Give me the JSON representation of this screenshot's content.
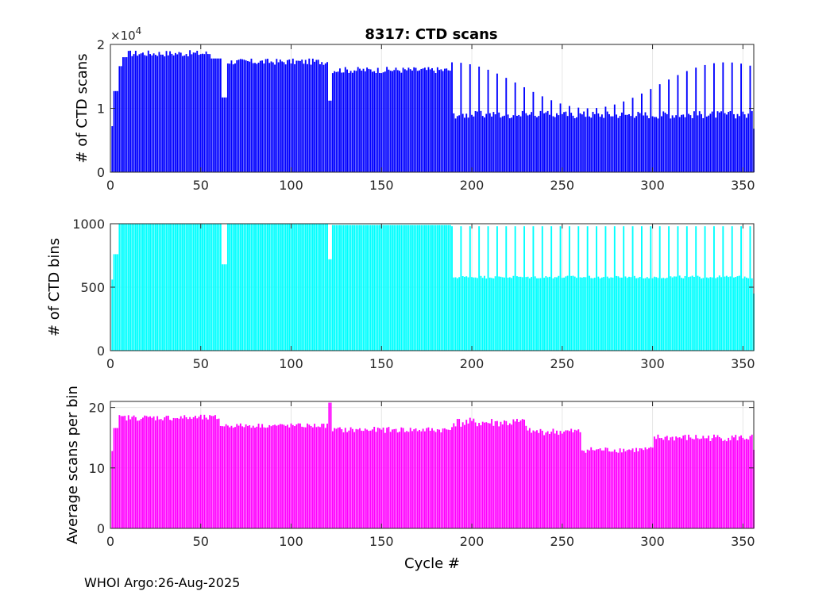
{
  "title": "8317: CTD scans",
  "footer": "WHOI Argo:26-Aug-2025",
  "chart_data": [
    {
      "type": "bar",
      "name": "ctd-scans",
      "title": "8317: CTD scans",
      "ylabel": "# of CTD scans",
      "xlabel": "",
      "xlim": [
        0,
        356
      ],
      "ylim": [
        0,
        2
      ],
      "y_exponent_label": "×10",
      "y_exponent_power": "4",
      "xticks": [
        "0",
        "50",
        "100",
        "150",
        "200",
        "250",
        "300",
        "350"
      ],
      "yticks": [
        "0",
        "1",
        "2"
      ],
      "color": "#0000ff",
      "grid": true,
      "segments": [
        {
          "from": 1,
          "to": 1,
          "value": 0.72
        },
        {
          "from": 2,
          "to": 4,
          "value": 1.27
        },
        {
          "from": 5,
          "to": 6,
          "value": 1.66
        },
        {
          "from": 7,
          "to": 9,
          "value": 1.8
        },
        {
          "from": 10,
          "to": 55,
          "value": 1.86,
          "jitter": 0.05
        },
        {
          "from": 56,
          "to": 61,
          "value": 1.78
        },
        {
          "from": 62,
          "to": 64,
          "value": 1.17
        },
        {
          "from": 65,
          "to": 120,
          "value": 1.73,
          "jitter": 0.05
        },
        {
          "from": 121,
          "to": 122,
          "value": 1.12
        },
        {
          "from": 123,
          "to": 188,
          "value": 1.6,
          "jitter": 0.05
        },
        {
          "from": 189,
          "to": 356,
          "value": 0.9,
          "jitter": 0.06,
          "spike_every": 5,
          "spike_from": 1.0,
          "spike_to": 1.72
        },
        {
          "from": 356,
          "to": 356,
          "value": 0.68
        }
      ]
    },
    {
      "type": "bar",
      "name": "ctd-bins",
      "title": "",
      "ylabel": "# of CTD bins",
      "xlabel": "",
      "xlim": [
        0,
        356
      ],
      "ylim": [
        0,
        1000
      ],
      "xticks": [
        "0",
        "50",
        "100",
        "150",
        "200",
        "250",
        "300",
        "350"
      ],
      "yticks": [
        "0",
        "500",
        "1000"
      ],
      "color": "#00ffff",
      "grid": true,
      "segments": [
        {
          "from": 1,
          "to": 1,
          "value": 560
        },
        {
          "from": 2,
          "to": 4,
          "value": 760
        },
        {
          "from": 5,
          "to": 61,
          "value": 1000
        },
        {
          "from": 62,
          "to": 64,
          "value": 680
        },
        {
          "from": 65,
          "to": 120,
          "value": 1000
        },
        {
          "from": 121,
          "to": 122,
          "value": 720
        },
        {
          "from": 123,
          "to": 188,
          "value": 990
        },
        {
          "from": 189,
          "to": 356,
          "value": 580,
          "jitter": 12,
          "spike_every": 5,
          "spike_from": 980,
          "spike_to": 980
        },
        {
          "from": 356,
          "to": 356,
          "value": 450
        }
      ]
    },
    {
      "type": "bar",
      "name": "avg-scans-per-bin",
      "title": "",
      "ylabel": "Average scans per bin",
      "xlabel": "Cycle #",
      "xlim": [
        0,
        356
      ],
      "ylim": [
        0,
        21
      ],
      "xticks": [
        "0",
        "50",
        "100",
        "150",
        "200",
        "250",
        "300",
        "350"
      ],
      "yticks": [
        "0",
        "10",
        "20"
      ],
      "color": "#ff00ff",
      "grid": true,
      "segments": [
        {
          "from": 1,
          "to": 1,
          "value": 12.8
        },
        {
          "from": 2,
          "to": 4,
          "value": 16.6
        },
        {
          "from": 5,
          "to": 60,
          "value": 18.3,
          "jitter": 0.5
        },
        {
          "from": 61,
          "to": 120,
          "value": 17.0,
          "jitter": 0.4
        },
        {
          "from": 121,
          "to": 122,
          "value": 20.8
        },
        {
          "from": 123,
          "to": 188,
          "value": 16.3,
          "jitter": 0.5
        },
        {
          "from": 189,
          "to": 230,
          "value": 17.5,
          "jitter": 0.8
        },
        {
          "from": 231,
          "to": 260,
          "value": 16.0,
          "jitter": 0.6
        },
        {
          "from": 261,
          "to": 300,
          "value": 13.0,
          "jitter": 0.5
        },
        {
          "from": 301,
          "to": 355,
          "value": 15.0,
          "jitter": 0.6
        },
        {
          "from": 356,
          "to": 356,
          "value": 13.0
        }
      ]
    }
  ]
}
